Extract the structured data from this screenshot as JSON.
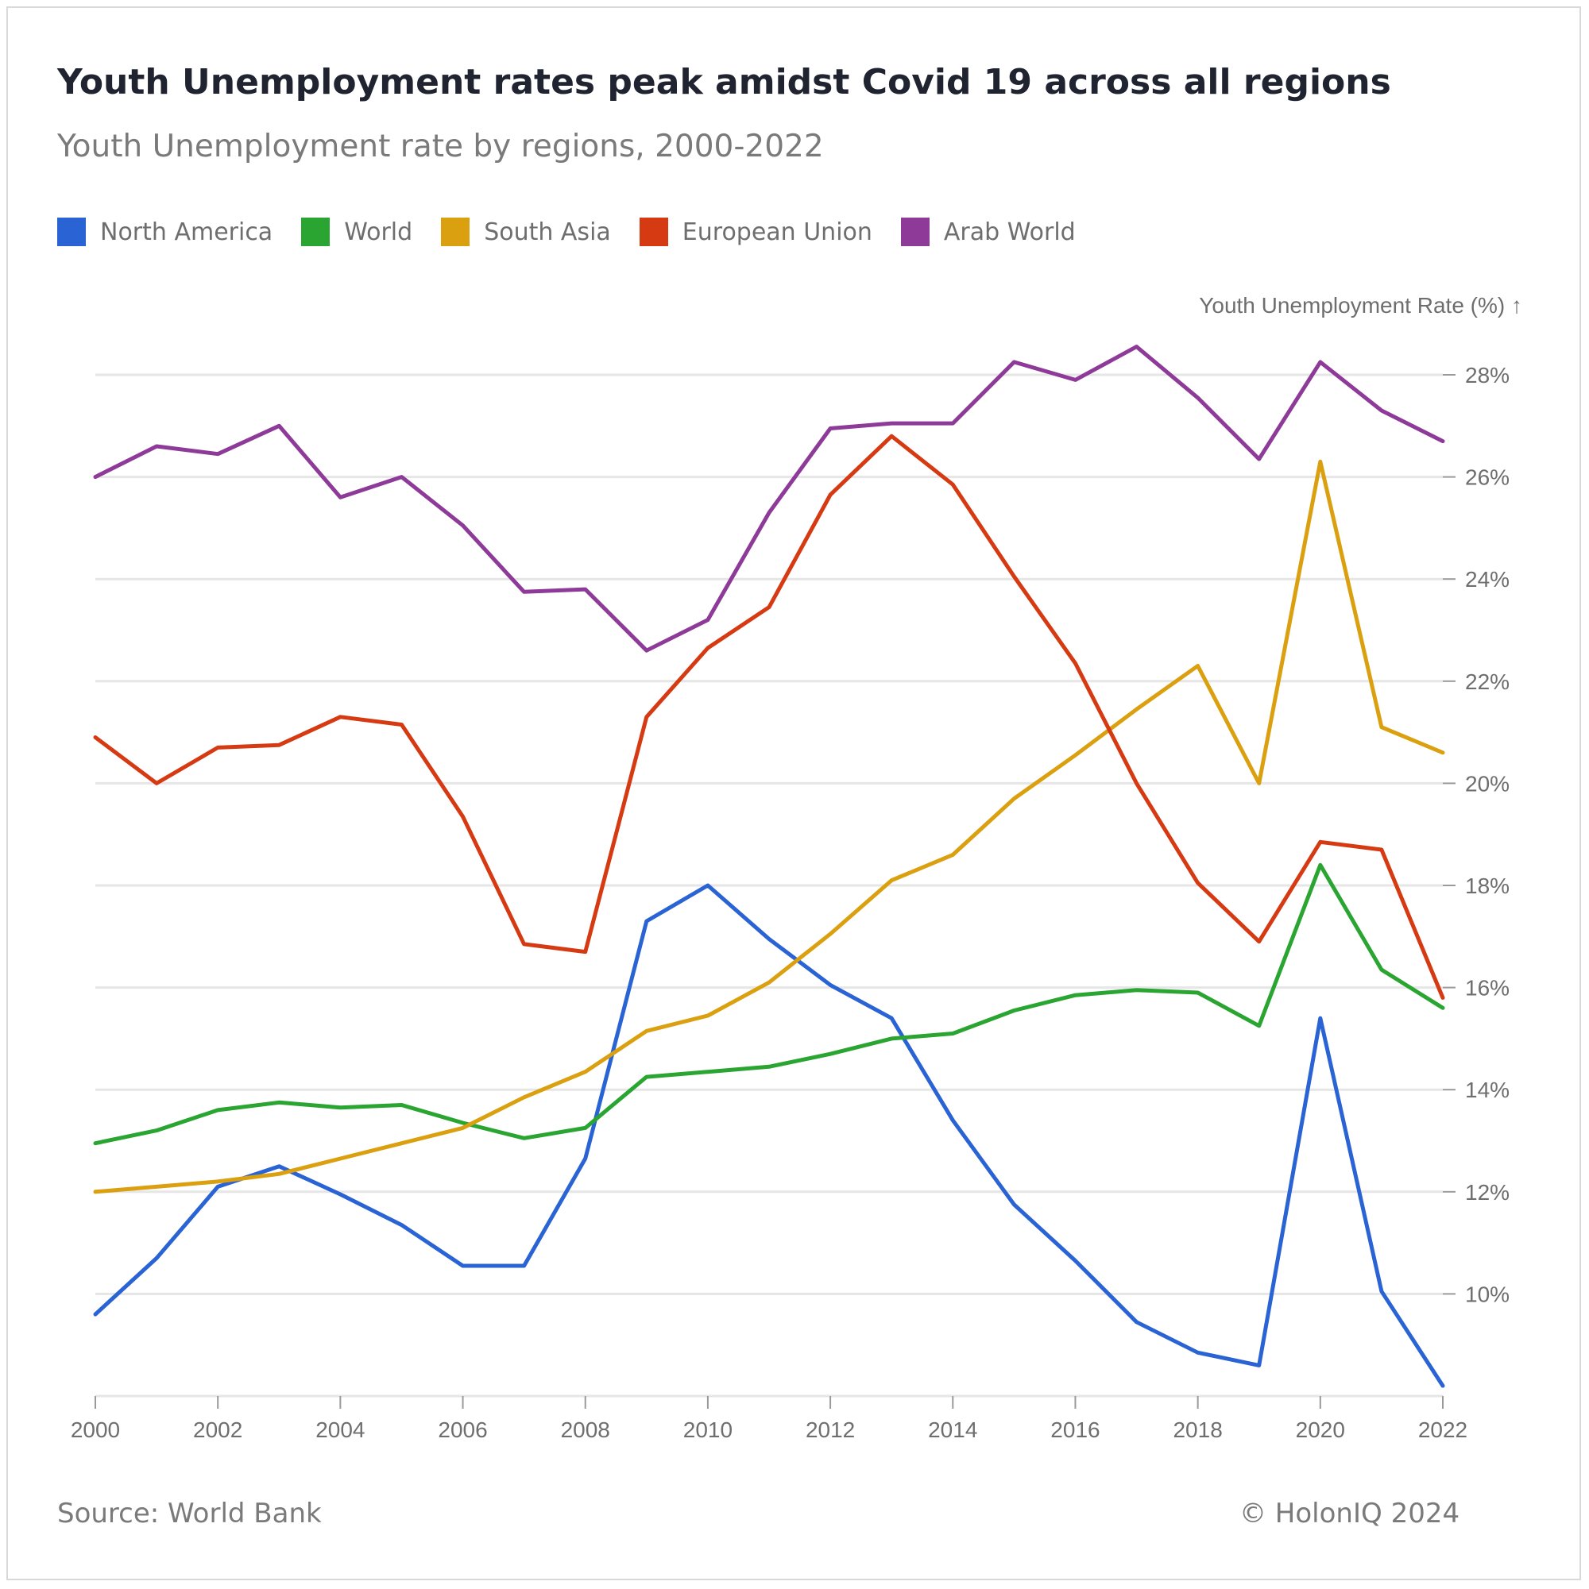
{
  "header": {
    "title": "Youth Unemployment rates peak amidst Covid 19 across all regions",
    "subtitle": "Youth Unemployment rate by regions, 2000-2022"
  },
  "footer": {
    "source": "Source: World Bank",
    "copyright": "© HolonIQ 2024"
  },
  "chart_data": {
    "type": "line",
    "title": "Youth Unemployment rates peak amidst Covid 19 across all regions",
    "subtitle": "Youth Unemployment rate by regions, 2000-2022",
    "xlabel": "",
    "ylabel": "Youth Unemployment Rate (%) ↑",
    "ylim": [
      8,
      29.5
    ],
    "xlim": [
      2000,
      2022
    ],
    "y_ticks": [
      10,
      12,
      14,
      16,
      18,
      20,
      22,
      24,
      26,
      28
    ],
    "y_tick_labels": [
      "10%",
      "12%",
      "14%",
      "16%",
      "18%",
      "20%",
      "22%",
      "24%",
      "26%",
      "28%"
    ],
    "x_ticks": [
      2000,
      2002,
      2004,
      2006,
      2008,
      2010,
      2012,
      2014,
      2016,
      2018,
      2020,
      2022
    ],
    "x_tick_labels": [
      "2000",
      "2002",
      "2004",
      "2006",
      "2008",
      "2010",
      "2012",
      "2014",
      "2016",
      "2018",
      "2020",
      "2022"
    ],
    "grid": "horizontal",
    "y_axis_position": "right",
    "legend_position": "top-left",
    "x": [
      2000,
      2001,
      2002,
      2003,
      2004,
      2005,
      2006,
      2007,
      2008,
      2009,
      2010,
      2011,
      2012,
      2013,
      2014,
      2015,
      2016,
      2017,
      2018,
      2019,
      2020,
      2021,
      2022
    ],
    "series": [
      {
        "name": "North America",
        "color": "#2a63d3",
        "values": [
          9.6,
          10.7,
          12.1,
          12.5,
          11.95,
          11.35,
          10.55,
          10.55,
          12.65,
          17.3,
          18.0,
          16.95,
          16.05,
          15.4,
          13.4,
          11.75,
          10.65,
          9.45,
          8.85,
          8.6,
          15.4,
          10.05,
          8.2
        ]
      },
      {
        "name": "World",
        "color": "#2ba532",
        "values": [
          12.95,
          13.2,
          13.6,
          13.75,
          13.65,
          13.7,
          13.35,
          13.05,
          13.25,
          14.25,
          14.35,
          14.45,
          14.7,
          15.0,
          15.1,
          15.55,
          15.85,
          15.95,
          15.9,
          15.25,
          18.4,
          16.35,
          15.6
        ]
      },
      {
        "name": "South Asia",
        "color": "#dba00f",
        "values": [
          12.0,
          12.1,
          12.2,
          12.35,
          12.65,
          12.95,
          13.25,
          13.85,
          14.35,
          15.15,
          15.45,
          16.1,
          17.05,
          18.1,
          18.6,
          19.7,
          20.55,
          21.45,
          22.3,
          20.0,
          26.3,
          21.1,
          20.6
        ]
      },
      {
        "name": "European Union",
        "color": "#d63a12",
        "values": [
          20.9,
          20.0,
          20.7,
          20.75,
          21.3,
          21.15,
          19.35,
          16.85,
          16.7,
          21.3,
          22.65,
          23.45,
          25.65,
          26.8,
          25.85,
          24.05,
          22.35,
          20.0,
          18.05,
          16.9,
          18.85,
          18.7,
          15.8
        ]
      },
      {
        "name": "Arab World",
        "color": "#8e3a99",
        "values": [
          26.0,
          26.6,
          26.45,
          27.0,
          25.6,
          26.0,
          25.05,
          23.75,
          23.8,
          22.6,
          23.2,
          25.3,
          26.95,
          27.05,
          27.05,
          28.25,
          27.9,
          28.55,
          27.55,
          26.35,
          28.25,
          27.3,
          26.7
        ]
      }
    ]
  }
}
